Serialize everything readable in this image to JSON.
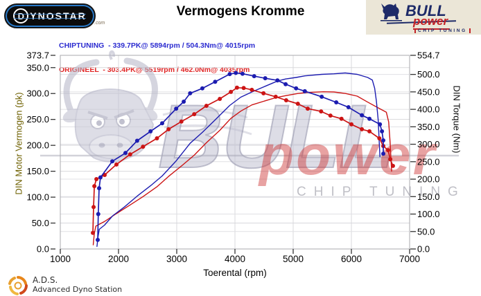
{
  "header": {
    "title": "Vermogens Kromme",
    "dynostar": {
      "initial": "D",
      "rest": "YNOSTAR",
      "suffix": ".com"
    },
    "legend": [
      {
        "name": "chiptuning",
        "label": "CHIPTUNING  - 339.7PK@ 5894rpm / 504.3Nm@ 4015rpm",
        "color": "#2b2bd0"
      },
      {
        "name": "origineel",
        "label": "ORIGINEEL  - 303.4PK@ 5519rpm / 462.0Nm@ 4035rpm",
        "color": "#e02525"
      }
    ],
    "bullpower": {
      "bull": "BULL",
      "power": "power",
      "chip": "CHIP TUNING"
    }
  },
  "watermark": {
    "bull": "BULL",
    "power": "power",
    "chip": "CHIP TUNING"
  },
  "chart_data": {
    "type": "line",
    "title": "Vermogens Kromme",
    "xlabel": "Toerental (rpm)",
    "ylabel_left": "DIN Motor Vermogen (pk)",
    "ylabel_right": "DIN Torque (Nm)",
    "grid": true,
    "x_range": [
      1000,
      7000
    ],
    "x_ticks": [
      1000,
      2000,
      3000,
      4000,
      5000,
      6000,
      7000
    ],
    "y_left_range": [
      0,
      373.7
    ],
    "y_left_ticks": [
      373.7,
      350,
      300,
      250,
      200,
      150,
      100,
      50,
      0
    ],
    "y_right_range": [
      0,
      554.7
    ],
    "y_right_ticks": [
      554.7,
      500,
      450,
      400,
      350,
      300,
      250,
      200,
      150,
      100,
      50,
      0
    ],
    "series": [
      {
        "name": "origineel-vermogen-pk",
        "axis": "left",
        "color": "#cc1414",
        "markers": false,
        "peak_label": "303.4PK@ 5519rpm",
        "points": [
          [
            1565,
            8
          ],
          [
            1585,
            30
          ],
          [
            1610,
            44
          ],
          [
            1760,
            53
          ],
          [
            1960,
            68
          ],
          [
            2200,
            85
          ],
          [
            2420,
            101
          ],
          [
            2660,
            120
          ],
          [
            2860,
            140
          ],
          [
            3080,
            160
          ],
          [
            3300,
            181
          ],
          [
            3510,
            205
          ],
          [
            3740,
            229
          ],
          [
            3930,
            252
          ],
          [
            4100,
            266
          ],
          [
            4290,
            278
          ],
          [
            4490,
            285
          ],
          [
            4700,
            292
          ],
          [
            4880,
            296
          ],
          [
            5080,
            300
          ],
          [
            5250,
            302
          ],
          [
            5519,
            303.4
          ],
          [
            5700,
            303
          ],
          [
            5900,
            300
          ],
          [
            6100,
            295
          ],
          [
            6270,
            284
          ],
          [
            6450,
            273
          ],
          [
            6600,
            264
          ],
          [
            6640,
            245
          ],
          [
            6665,
            205
          ],
          [
            6690,
            150
          ]
        ]
      },
      {
        "name": "chiptuning-vermogen-pk",
        "axis": "left",
        "color": "#1c1cb0",
        "markers": false,
        "peak_label": "339.7PK@ 5894rpm",
        "points": [
          [
            1630,
            5
          ],
          [
            1650,
            25
          ],
          [
            1670,
            38
          ],
          [
            1760,
            46
          ],
          [
            1900,
            64
          ],
          [
            2100,
            81
          ],
          [
            2320,
            102
          ],
          [
            2550,
            122
          ],
          [
            2750,
            141
          ],
          [
            2990,
            170
          ],
          [
            3230,
            204
          ],
          [
            3440,
            225
          ],
          [
            3660,
            249
          ],
          [
            3910,
            277
          ],
          [
            4100,
            293
          ],
          [
            4330,
            305
          ],
          [
            4520,
            314
          ],
          [
            4730,
            324
          ],
          [
            4870,
            328
          ],
          [
            5050,
            331
          ],
          [
            5200,
            334
          ],
          [
            5490,
            337
          ],
          [
            5700,
            338
          ],
          [
            5894,
            339.7
          ],
          [
            6100,
            337
          ],
          [
            6280,
            331
          ],
          [
            6360,
            326
          ],
          [
            6400,
            310
          ],
          [
            6430,
            285
          ],
          [
            6460,
            250
          ],
          [
            6490,
            178
          ]
        ]
      },
      {
        "name": "origineel-koppel-nm",
        "axis": "right",
        "color": "#cc1414",
        "markers": true,
        "peak_label": "462.0Nm@ 4035rpm",
        "points": [
          [
            1560,
            46
          ],
          [
            1572,
            120
          ],
          [
            1585,
            180
          ],
          [
            1620,
            200
          ],
          [
            1762,
            212
          ],
          [
            1964,
            242
          ],
          [
            2200,
            271
          ],
          [
            2420,
            293
          ],
          [
            2660,
            317
          ],
          [
            2860,
            343
          ],
          [
            3080,
            365
          ],
          [
            3300,
            386
          ],
          [
            3510,
            410
          ],
          [
            3740,
            430
          ],
          [
            3930,
            450
          ],
          [
            4035,
            462
          ],
          [
            4150,
            461
          ],
          [
            4290,
            456
          ],
          [
            4490,
            446
          ],
          [
            4700,
            436
          ],
          [
            4880,
            426
          ],
          [
            5080,
            416
          ],
          [
            5250,
            402
          ],
          [
            5480,
            394
          ],
          [
            5640,
            382
          ],
          [
            5830,
            373
          ],
          [
            6000,
            357
          ],
          [
            6180,
            343
          ],
          [
            6310,
            337
          ],
          [
            6480,
            317
          ],
          [
            6548,
            295
          ],
          [
            6630,
            283
          ],
          [
            6668,
            257
          ],
          [
            6714,
            238
          ]
        ]
      },
      {
        "name": "chiptuning-koppel-nm",
        "axis": "right",
        "color": "#1c1cb0",
        "markers": true,
        "peak_label": "504.3Nm@ 4015rpm",
        "points": [
          [
            1643,
            26
          ],
          [
            1652,
            100
          ],
          [
            1667,
            174
          ],
          [
            1690,
            205
          ],
          [
            1893,
            251
          ],
          [
            2119,
            275
          ],
          [
            2320,
            310
          ],
          [
            2550,
            337
          ],
          [
            2750,
            360
          ],
          [
            2990,
            402
          ],
          [
            3120,
            422
          ],
          [
            3230,
            446
          ],
          [
            3440,
            460
          ],
          [
            3660,
            479
          ],
          [
            3910,
            501
          ],
          [
            4015,
            504.3
          ],
          [
            4130,
            502
          ],
          [
            4330,
            495
          ],
          [
            4520,
            489
          ],
          [
            4730,
            483
          ],
          [
            4870,
            472
          ],
          [
            5050,
            460
          ],
          [
            5200,
            452
          ],
          [
            5490,
            436
          ],
          [
            5740,
            420
          ],
          [
            5950,
            406
          ],
          [
            6180,
            383
          ],
          [
            6310,
            373
          ],
          [
            6490,
            357
          ],
          [
            6525,
            337
          ],
          [
            6548,
            311
          ],
          [
            6548,
            273
          ]
        ]
      }
    ]
  },
  "footer": {
    "ads": "A.D.S.",
    "ads_sub": "Advanced Dyno Station"
  }
}
